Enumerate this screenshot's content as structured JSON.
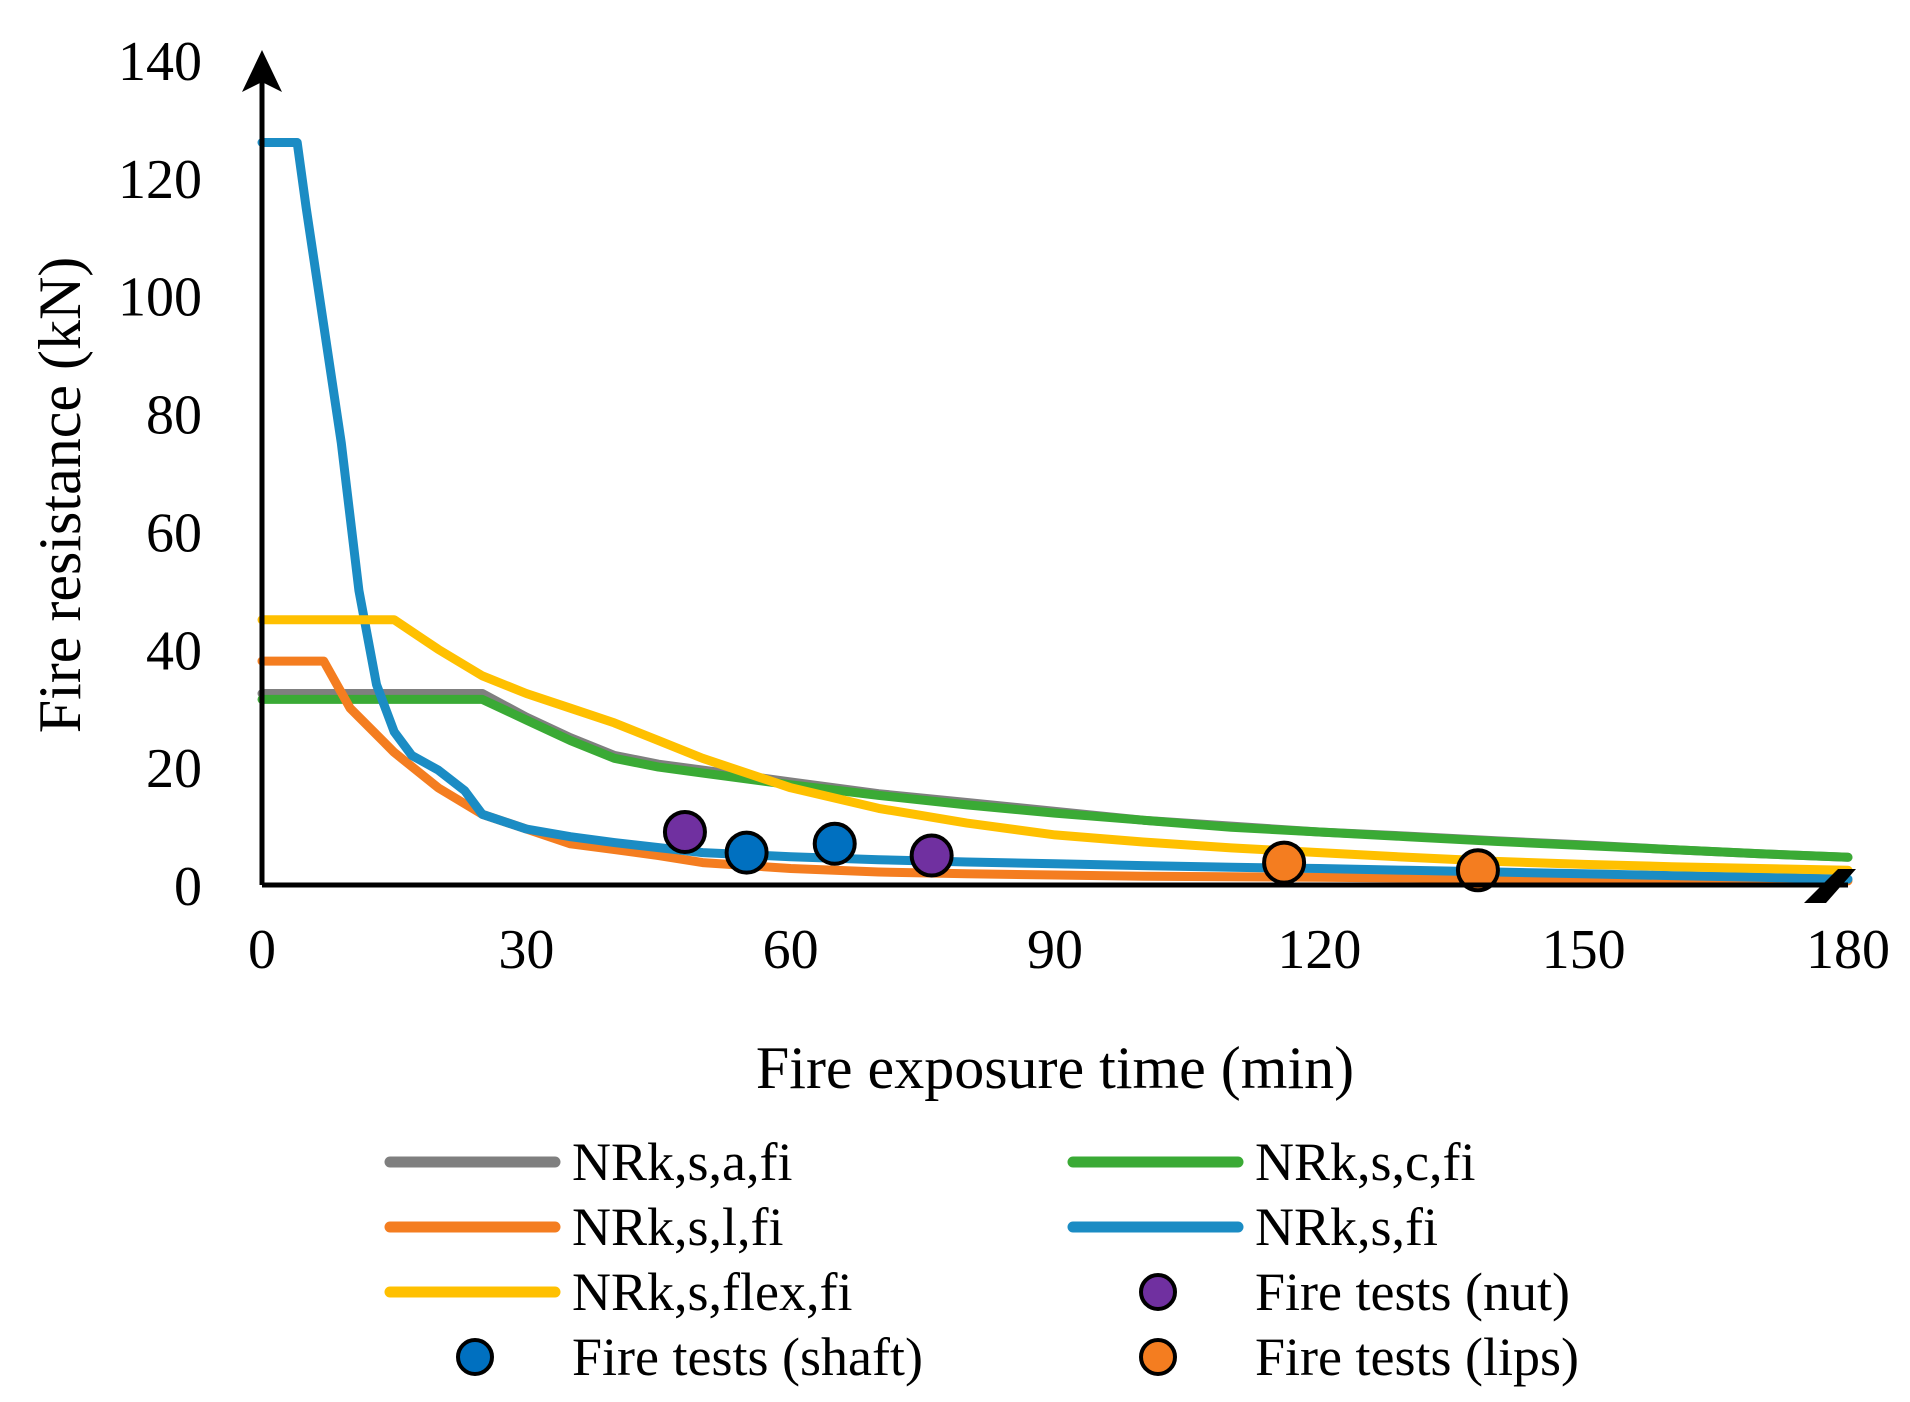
{
  "chart_data": {
    "type": "line",
    "title": "",
    "xlabel": "Fire exposure time (min)",
    "ylabel": "Fire resistance (kN)",
    "xlim": [
      0,
      180
    ],
    "ylim": [
      0,
      140
    ],
    "xticks": [
      0,
      30,
      60,
      90,
      120,
      150,
      180
    ],
    "yticks": [
      0,
      20,
      40,
      60,
      80,
      100,
      120,
      140
    ],
    "grid": false,
    "legend_position": "bottom",
    "series": [
      {
        "name": "NRk,s,a,fi",
        "color": "#7f7f7f",
        "x": [
          0,
          5,
          10,
          15,
          20,
          25,
          30,
          35,
          40,
          45,
          50,
          60,
          70,
          80,
          90,
          100,
          110,
          120,
          130,
          140,
          150,
          160,
          170,
          180
        ],
        "y": [
          32.5,
          32.5,
          32.5,
          32.5,
          32.5,
          32.5,
          28.5,
          25.0,
          22.0,
          20.5,
          19.5,
          17.5,
          15.5,
          14.0,
          12.5,
          11.0,
          10.0,
          9.0,
          8.3,
          7.5,
          6.8,
          6.0,
          5.3,
          4.7
        ]
      },
      {
        "name": "NRk,s,c,fi",
        "color": "#3aaa35",
        "x": [
          0,
          5,
          10,
          15,
          20,
          25,
          30,
          35,
          40,
          45,
          50,
          60,
          70,
          80,
          90,
          100,
          110,
          120,
          130,
          140,
          150,
          160,
          170,
          180
        ],
        "y": [
          31.5,
          31.5,
          31.5,
          31.5,
          31.5,
          31.5,
          28.0,
          24.5,
          21.5,
          20.0,
          19.0,
          17.0,
          15.2,
          13.6,
          12.2,
          11.0,
          9.8,
          9.0,
          8.2,
          7.4,
          6.7,
          6.0,
          5.3,
          4.7
        ]
      },
      {
        "name": "NRk,s,l,fi",
        "color": "#f47d20",
        "x": [
          0,
          3,
          7,
          10,
          15,
          20,
          25,
          30,
          35,
          40,
          45,
          50,
          60,
          70,
          80,
          90,
          100,
          110,
          120,
          130,
          140,
          150,
          160,
          170,
          180
        ],
        "y": [
          38,
          38,
          38,
          30,
          22.5,
          16.5,
          12.0,
          9.5,
          7.0,
          6.0,
          5.0,
          3.8,
          2.8,
          2.2,
          1.9,
          1.7,
          1.5,
          1.4,
          1.3,
          1.2,
          1.1,
          1.0,
          0.9,
          0.8,
          0.7
        ]
      },
      {
        "name": "NRk,s,fi",
        "color": "#1b8cc4",
        "x": [
          0,
          2,
          4,
          5,
          7,
          9,
          11,
          13,
          15,
          17,
          20,
          23,
          25,
          30,
          35,
          40,
          50,
          60,
          70,
          80,
          90,
          100,
          110,
          120,
          130,
          140,
          150,
          160,
          170,
          180
        ],
        "y": [
          126,
          126,
          126,
          115,
          95,
          75,
          50,
          34,
          26,
          22,
          19.5,
          16,
          12,
          9.5,
          8.2,
          7.2,
          5.5,
          4.8,
          4.3,
          3.9,
          3.6,
          3.3,
          3.0,
          2.8,
          2.5,
          2.2,
          1.9,
          1.6,
          1.3,
          1.0
        ]
      },
      {
        "name": "NRk,s,flex,fi",
        "color": "#ffc000",
        "x": [
          0,
          5,
          10,
          15,
          20,
          25,
          30,
          35,
          40,
          45,
          50,
          55,
          60,
          70,
          80,
          90,
          100,
          110,
          120,
          130,
          140,
          150,
          160,
          170,
          180
        ],
        "y": [
          45,
          45,
          45,
          45,
          40,
          35.5,
          32.5,
          30,
          27.5,
          24.5,
          21.5,
          19,
          16.5,
          13,
          10.5,
          8.5,
          7.3,
          6.3,
          5.5,
          4.7,
          4.0,
          3.5,
          3.1,
          2.8,
          2.5
        ]
      }
    ],
    "points": [
      {
        "name": "Fire tests (nut)",
        "color": "#7030a0",
        "x": [
          48,
          76
        ],
        "y": [
          9,
          5
        ]
      },
      {
        "name": "Fire tests (shaft)",
        "color": "#0070c0",
        "x": [
          55,
          65
        ],
        "y": [
          5.5,
          7
        ]
      },
      {
        "name": "Fire tests (lips)",
        "color": "#f47d20",
        "x": [
          116,
          138
        ],
        "y": [
          3.8,
          2.5
        ]
      }
    ],
    "legend": [
      {
        "label": "NRk,s,a,fi",
        "kind": "line",
        "color": "#7f7f7f"
      },
      {
        "label": "NRk,s,c,fi",
        "kind": "line",
        "color": "#3aaa35"
      },
      {
        "label": "NRk,s,l,fi",
        "kind": "line",
        "color": "#f47d20"
      },
      {
        "label": "NRk,s,fi",
        "kind": "line",
        "color": "#1b8cc4"
      },
      {
        "label": "NRk,s,flex,fi",
        "kind": "line",
        "color": "#ffc000"
      },
      {
        "label": "Fire tests (nut)",
        "kind": "marker",
        "color": "#7030a0"
      },
      {
        "label": "Fire tests (shaft)",
        "kind": "marker",
        "color": "#0070c0"
      },
      {
        "label": "Fire tests (lips)",
        "kind": "marker",
        "color": "#f47d20"
      }
    ]
  }
}
